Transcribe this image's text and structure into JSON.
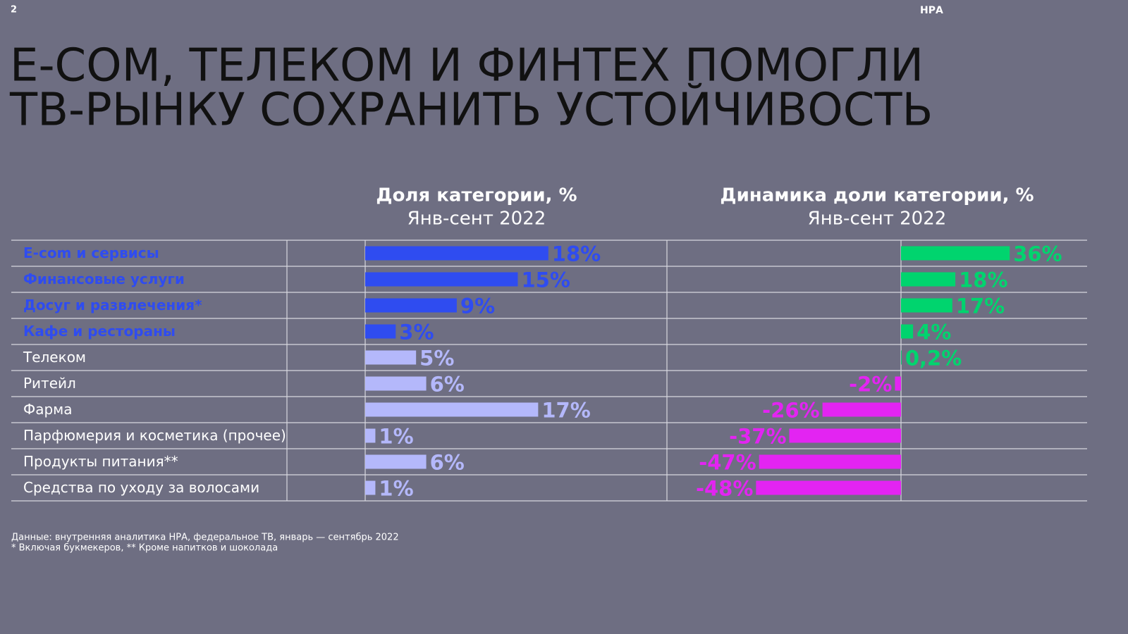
{
  "page_number": "2",
  "brand": "НРА",
  "title": [
    "E-COM, ТЕЛЕКОМ И ФИНТЕХ ПОМОГЛИ",
    "ТВ-РЫНКУ СОХРАНИТЬ УСТОЙЧИВОСТЬ"
  ],
  "footnotes": [
    "Данные: внутренняя аналитика НРА, федеральное ТВ, январь — сентябрь 2022",
    "* Включая букмекеров, ** Кроме напитков и шоколада"
  ],
  "chart_data": [
    {
      "type": "bar",
      "title": "Доля категории, %",
      "subtitle": "Янв-сент 2022",
      "categories": [
        "E-com и сервисы",
        "Финансовые услуги",
        "Досуг и развлечения*",
        "Кафе и рестораны",
        "Телеком",
        "Ритейл",
        "Фарма",
        "Парфюмерия и косметика (прочее)",
        "Продукты питания**",
        "Средства по уходу за волосами"
      ],
      "values": [
        18,
        15,
        9,
        3,
        5,
        6,
        17,
        1,
        6,
        1
      ],
      "value_labels": [
        "18%",
        "15%",
        "9%",
        "3%",
        "5%",
        "6%",
        "17%",
        "1%",
        "6%",
        "1%"
      ],
      "colors": [
        "#2f4cf0",
        "#2f4cf0",
        "#2f4cf0",
        "#2f4cf0",
        "#b4b8fb",
        "#b4b8fb",
        "#b4b8fb",
        "#b4b8fb",
        "#b4b8fb",
        "#b4b8fb"
      ],
      "xlim": [
        0,
        30
      ]
    },
    {
      "type": "bar",
      "title": "Динамика доли категории, %",
      "subtitle": "Янв-сент 2022",
      "values": [
        36,
        18,
        17,
        4,
        0.2,
        -2,
        -26,
        -37,
        -47,
        -48
      ],
      "value_labels": [
        "36%",
        "18%",
        "17%",
        "4%",
        "0,2%",
        "-2%",
        "-26%",
        "-37%",
        "-47%",
        "-48%"
      ],
      "colors": [
        "#00d46e",
        "#00d46e",
        "#00d46e",
        "#00d46e",
        "#00d46e",
        "#e324f2",
        "#e324f2",
        "#e324f2",
        "#e324f2",
        "#e324f2"
      ],
      "xlim": [
        -60,
        60
      ]
    }
  ]
}
